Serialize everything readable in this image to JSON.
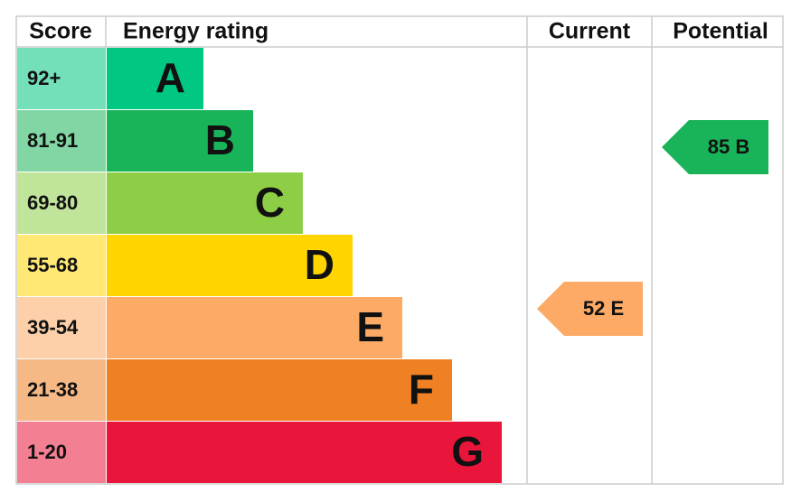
{
  "header": {
    "score": "Score",
    "energy_rating": "Energy rating",
    "current": "Current",
    "potential": "Potential"
  },
  "bands": [
    {
      "score": "92+",
      "letter": "A",
      "color": "#00c781"
    },
    {
      "score": "81-91",
      "letter": "B",
      "color": "#19b459"
    },
    {
      "score": "69-80",
      "letter": "C",
      "color": "#8dce46"
    },
    {
      "score": "55-68",
      "letter": "D",
      "color": "#ffd500"
    },
    {
      "score": "39-54",
      "letter": "E",
      "color": "#fcaa65"
    },
    {
      "score": "21-38",
      "letter": "F",
      "color": "#ef8023"
    },
    {
      "score": "1-20",
      "letter": "G",
      "color": "#e9153b"
    }
  ],
  "current": {
    "label": "52 E",
    "color": "#fcaa65"
  },
  "potential": {
    "label": "85 B",
    "color": "#19b459"
  }
}
